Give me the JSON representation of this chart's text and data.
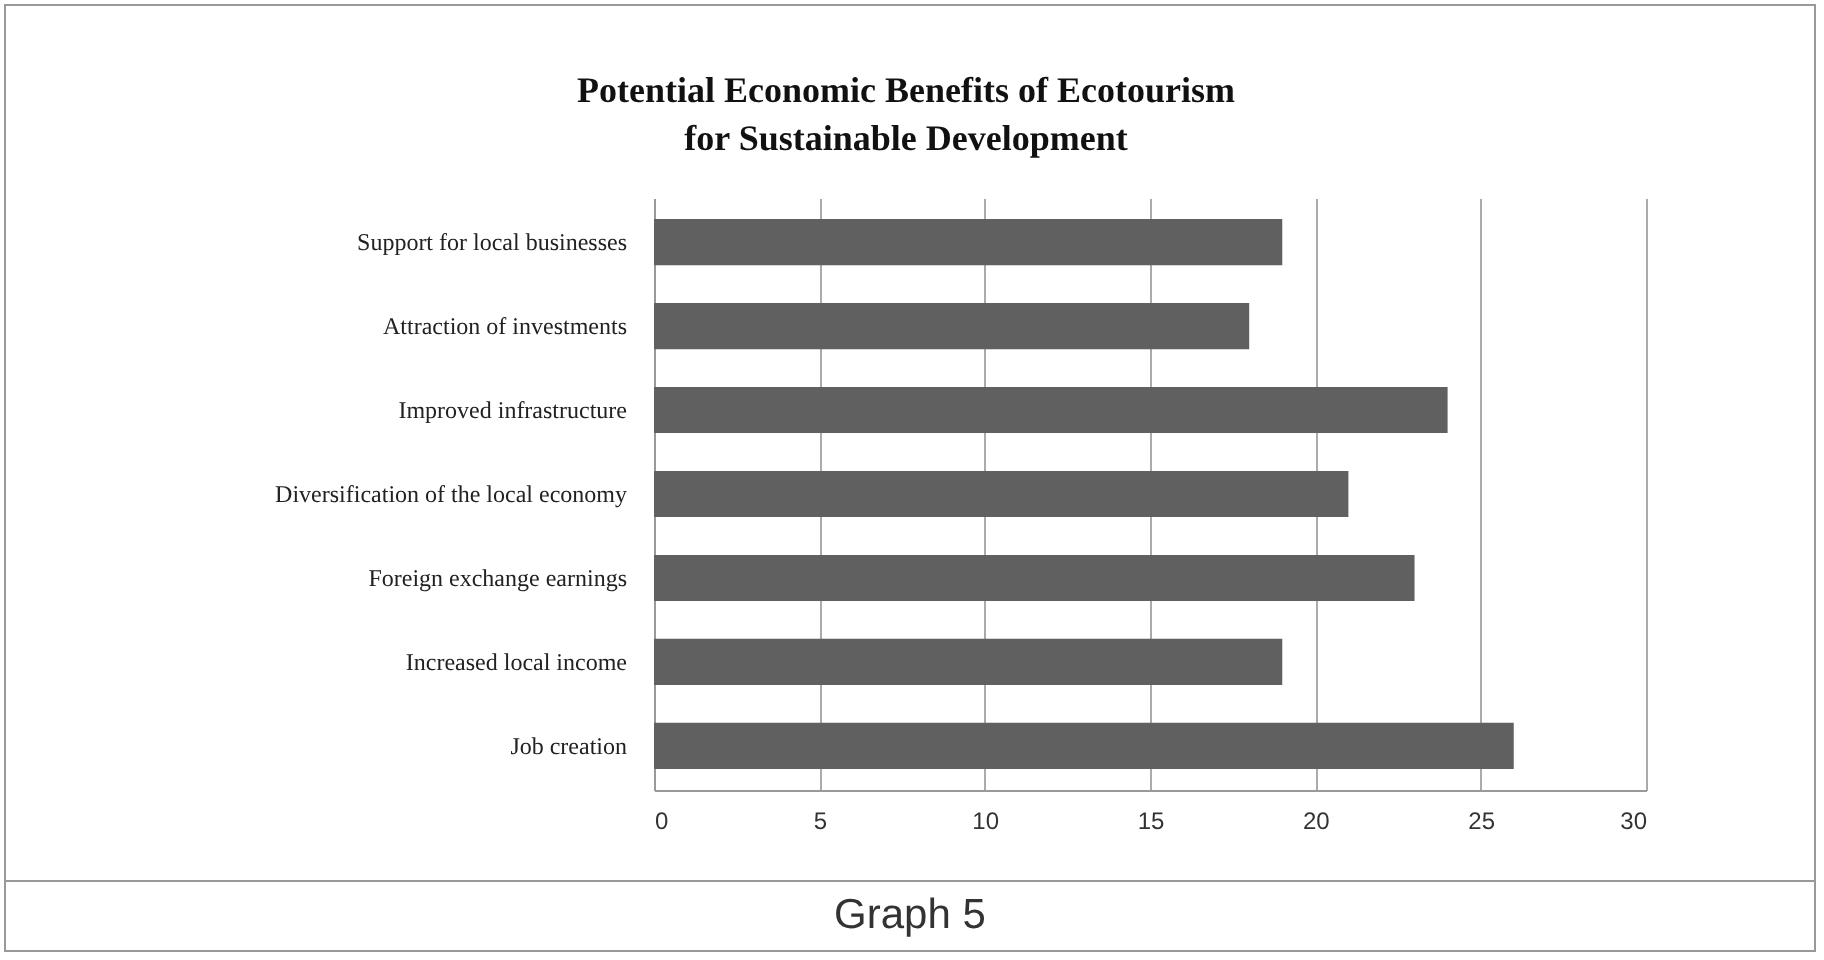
{
  "chart_data": {
    "type": "bar",
    "orientation": "horizontal",
    "title": "Potential Economic Benefits of Ecotourism for Sustainable Development",
    "categories": [
      "Support for local businesses",
      "Attraction of investments",
      "Improved infrastructure",
      "Diversification of the local economy",
      "Foreign exchange earnings",
      "Increased local income",
      "Job creation"
    ],
    "values": [
      19,
      18,
      24,
      21,
      23,
      19,
      26
    ],
    "color": "#606060",
    "xlim": [
      0,
      30
    ],
    "xticks": [
      0,
      5,
      10,
      15,
      20,
      25,
      30
    ],
    "grid": "x",
    "annotations": [
      "Graph 5"
    ]
  }
}
